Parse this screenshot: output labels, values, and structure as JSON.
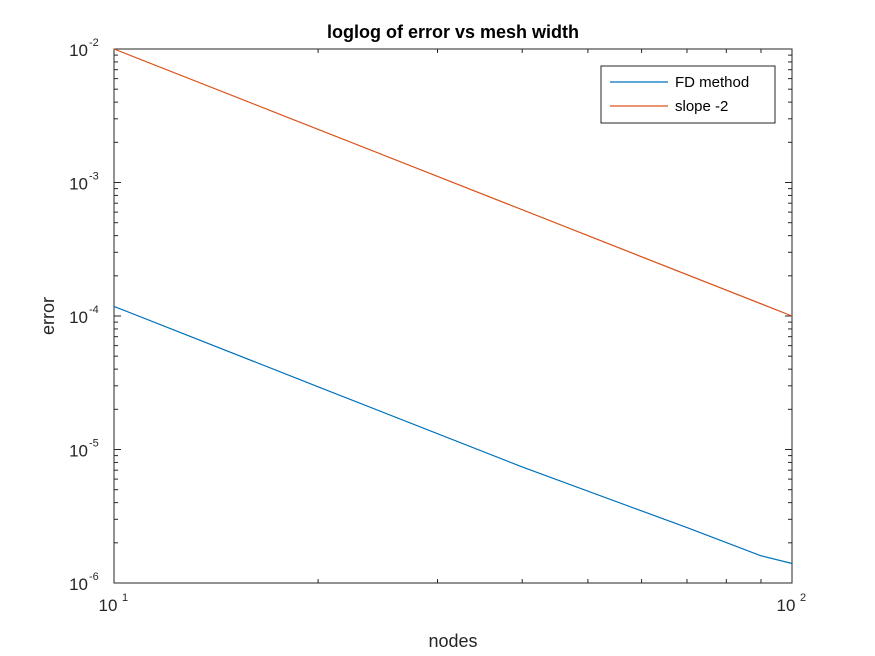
{
  "chart_data": {
    "type": "line",
    "title": "loglog of error vs mesh width",
    "xlabel": "nodes",
    "ylabel": "error",
    "xscale": "log",
    "yscale": "log",
    "xlim": [
      10,
      100
    ],
    "ylim": [
      1e-06,
      0.01
    ],
    "grid": false,
    "legend_position": "top-right",
    "x_ticks": [
      {
        "value": 10,
        "base": "10",
        "exp": "1"
      },
      {
        "value": 100,
        "base": "10",
        "exp": "2"
      }
    ],
    "y_ticks": [
      {
        "value": 0.01,
        "base": "10",
        "exp": "-2"
      },
      {
        "value": 0.001,
        "base": "10",
        "exp": "-3"
      },
      {
        "value": 0.0001,
        "base": "10",
        "exp": "-4"
      },
      {
        "value": 1e-05,
        "base": "10",
        "exp": "-5"
      },
      {
        "value": 1e-06,
        "base": "10",
        "exp": "-6"
      }
    ],
    "series": [
      {
        "name": "FD method",
        "color": "#0072BD",
        "x": [
          10,
          20,
          40,
          70,
          90,
          100
        ],
        "y": [
          0.000118,
          2.95e-05,
          7.4e-06,
          2.6e-06,
          1.6e-06,
          1.4e-06
        ]
      },
      {
        "name": "slope -2",
        "color": "#D95319",
        "x": [
          10,
          100
        ],
        "y": [
          0.01,
          0.0001
        ]
      }
    ]
  }
}
